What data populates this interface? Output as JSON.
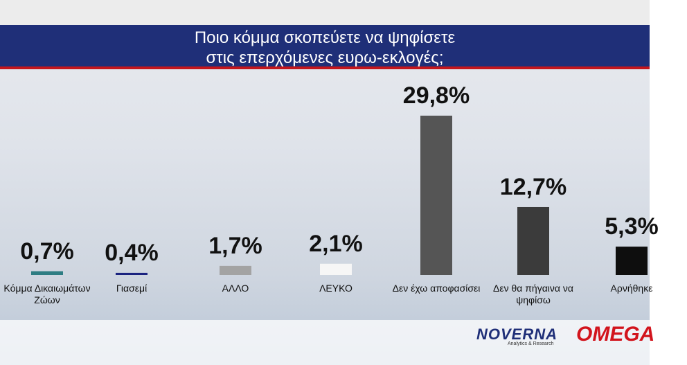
{
  "chart_data": {
    "type": "bar",
    "title": [
      "Ποιο κόμμα σκοπεύετε να ψηφίσετε",
      "στις επερχόμενες ευρω-εκλογές;"
    ],
    "categories": [
      "Κόμμα Δικαιωμάτων Ζώων",
      "Γιασεμί",
      "ΑΛΛΟ",
      "ΛΕΥΚΟ",
      "Δεν έχω αποφασίσει",
      "Δεν θα πήγαινα να ψηφίσω",
      "Αρνήθηκε"
    ],
    "values": [
      0.7,
      0.4,
      1.7,
      2.1,
      29.8,
      12.7,
      5.3
    ],
    "value_labels": [
      "0,7%",
      "0,4%",
      "1,7%",
      "2,1%",
      "29,8%",
      "12,7%",
      "5,3%"
    ],
    "colors": [
      "#2e7d83",
      "#1b2380",
      "#a3a3a3",
      "#f6f6f6",
      "#555555",
      "#3b3b3b",
      "#0e0e0e"
    ]
  },
  "logos": {
    "pollster": "NOVERNA",
    "pollster_tagline": "Analytics & Research",
    "channel": "OMEGA"
  }
}
